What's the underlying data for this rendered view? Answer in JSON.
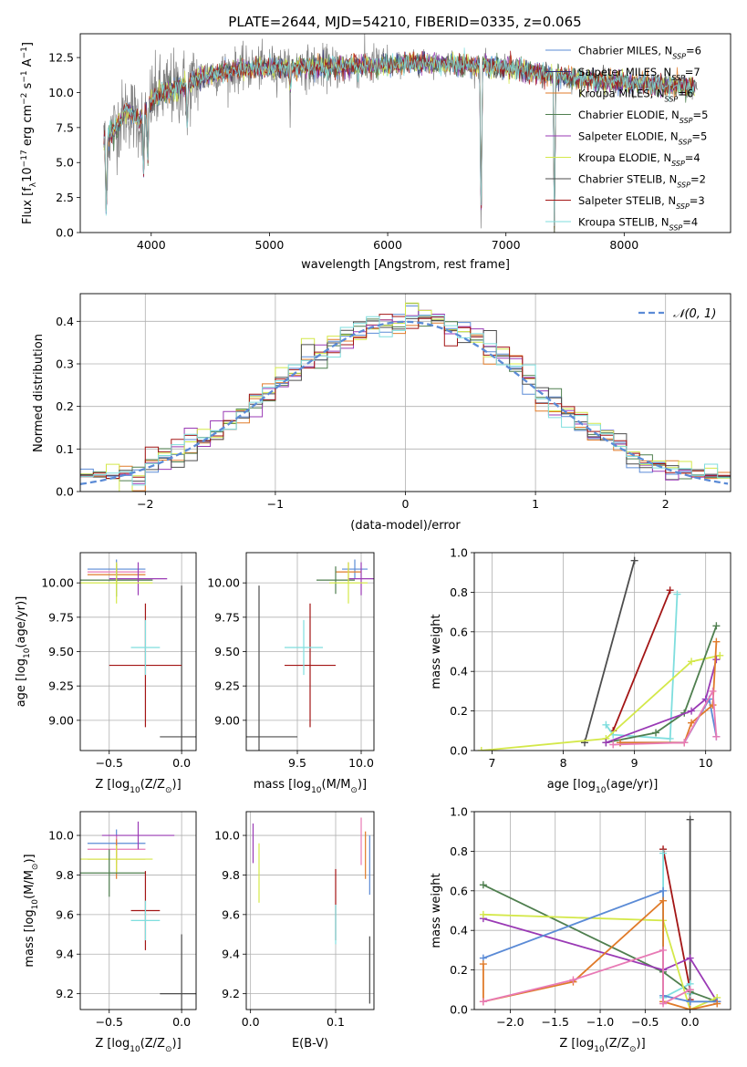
{
  "figure": {
    "title": "PLATE=2644, MJD=54210, FIBERID=0335, z=0.065"
  },
  "colors": {
    "Chabrier MILES": "#5b8bd6",
    "Salpeter MILES": "#2f2f6f",
    "Kroupa MILES": "#e07b2a",
    "Chabrier ELODIE": "#4f7f4f",
    "Salpeter ELODIE": "#9a3ab5",
    "Kroupa ELODIE": "#d4e84a",
    "Chabrier STELIB": "#4d4d4d",
    "Salpeter STELIB": "#a31515",
    "Kroupa STELIB": "#7fdede",
    "pink": "#e87ab5",
    "data": "#808080",
    "gaussian": "#5b8bd6"
  },
  "chart_data": [
    {
      "id": "spectrum",
      "type": "line",
      "title": "PLATE=2644, MJD=54210, FIBERID=0335, z=0.065",
      "xlabel": "wavelength [Angstrom, rest frame]",
      "ylabel_parts": {
        "a": "Flux [f",
        "sub": "λ",
        "b": "10",
        "sup1": "−17",
        "c": " erg cm",
        "sup2": "−2",
        "d": " s",
        "sup3": "−1",
        "e": " A",
        "sup4": "−1",
        "f": "]"
      },
      "xlim": [
        3400,
        8900
      ],
      "ylim": [
        0,
        14.2
      ],
      "xticks": [
        4000,
        5000,
        6000,
        7000,
        8000
      ],
      "yticks": [
        0.0,
        2.5,
        5.0,
        7.5,
        10.0,
        12.5
      ],
      "grid": false,
      "legend_position": "top-right",
      "legend": [
        {
          "label": "Chabrier MILES, N",
          "sub": "SSP",
          "tail": "=6",
          "color": "#5b8bd6"
        },
        {
          "label": "Salpeter MILES, N",
          "sub": "SSP",
          "tail": "=7",
          "color": "#2f2f6f"
        },
        {
          "label": "Kroupa MILES, N",
          "sub": "SSP",
          "tail": "=6",
          "color": "#e07b2a"
        },
        {
          "label": "Chabrier ELODIE, N",
          "sub": "SSP",
          "tail": "=5",
          "color": "#4f7f4f"
        },
        {
          "label": "Salpeter ELODIE, N",
          "sub": "SSP",
          "tail": "=5",
          "color": "#9a3ab5"
        },
        {
          "label": "Kroupa ELODIE, N",
          "sub": "SSP",
          "tail": "=4",
          "color": "#d4e84a"
        },
        {
          "label": "Chabrier STELIB, N",
          "sub": "SSP",
          "tail": "=2",
          "color": "#4d4d4d"
        },
        {
          "label": "Salpeter STELIB, N",
          "sub": "SSP",
          "tail": "=3",
          "color": "#a31515"
        },
        {
          "label": "Kroupa STELIB, N",
          "sub": "SSP",
          "tail": "=4",
          "color": "#7fdede"
        }
      ],
      "continuum": {
        "x": [
          3600,
          3700,
          3800,
          3900,
          4000,
          4100,
          4200,
          4300,
          4400,
          4500,
          4700,
          5000,
          5300,
          5600,
          6000,
          6300,
          6600,
          7000,
          7400,
          7800,
          8200,
          8600
        ],
        "y": [
          6.5,
          7.5,
          8.8,
          8.0,
          9.5,
          10.0,
          10.3,
          10.5,
          11.0,
          11.3,
          11.6,
          11.8,
          11.8,
          11.8,
          12.0,
          12.1,
          12.0,
          11.8,
          11.2,
          10.8,
          10.6,
          10.4
        ]
      },
      "absorption_lines": [
        {
          "x": 3620,
          "depth": 0.9
        },
        {
          "x": 3935,
          "depth": 0.55
        },
        {
          "x": 3970,
          "depth": 0.5
        },
        {
          "x": 4305,
          "depth": 0.3
        },
        {
          "x": 5175,
          "depth": 0.15
        },
        {
          "x": 6790,
          "depth": 1.0
        },
        {
          "x": 7410,
          "depth": 1.0
        }
      ]
    },
    {
      "id": "residuals",
      "type": "histogram",
      "xlabel": "(data-model)/error",
      "ylabel": "Normed distribution",
      "xlim": [
        -2.5,
        2.5
      ],
      "ylim": [
        0,
        0.465
      ],
      "xticks": [
        -2,
        -1,
        0,
        1,
        2
      ],
      "yticks": [
        0.0,
        0.1,
        0.2,
        0.3,
        0.4
      ],
      "grid": true,
      "legend_position": "top-right",
      "gaussian_label": "𝒩(0, 1)",
      "bin_width": 0.1
    },
    {
      "id": "age-vs-Z",
      "type": "errorbar",
      "xlabel_parts": {
        "a": "Z [log",
        "sub": "10",
        "b": "(Z/Z",
        "sub2": "⊙",
        "c": ")]"
      },
      "ylabel_parts": {
        "a": "age  [log",
        "sub": "10",
        "b": "(age/yr)]"
      },
      "xlim": [
        -0.7,
        0.1
      ],
      "ylim": [
        8.78,
        10.22
      ],
      "xticks": [
        -0.5,
        0.0
      ],
      "yticks": [
        9.0,
        9.25,
        9.5,
        9.75,
        10.0
      ],
      "grid": true,
      "points": [
        {
          "x": -0.45,
          "xerr": 0.2,
          "y": 10.1,
          "yerr": 0.07,
          "color": "#5b8bd6"
        },
        {
          "x": -0.45,
          "xerr": 0.2,
          "y": 10.08,
          "yerr": 0.07,
          "color": "#e87ab5"
        },
        {
          "x": -0.45,
          "xerr": 0.2,
          "y": 10.06,
          "yerr": 0.07,
          "color": "#e07b2a"
        },
        {
          "x": -0.45,
          "xerr": 0.25,
          "y": 10.02,
          "yerr": 0.12,
          "color": "#4f7f4f"
        },
        {
          "x": -0.3,
          "xerr": 0.2,
          "y": 10.03,
          "yerr": 0.12,
          "color": "#9a3ab5"
        },
        {
          "x": -0.45,
          "xerr": 0.25,
          "y": 10.0,
          "yerr": 0.15,
          "color": "#d4e84a"
        },
        {
          "x": 0.0,
          "xerr": 0.15,
          "y": 8.88,
          "yerr": 1.1,
          "color": "#4d4d4d"
        },
        {
          "x": -0.25,
          "xerr": 0.25,
          "y": 9.4,
          "yerr": 0.45,
          "color": "#a31515"
        },
        {
          "x": -0.25,
          "xerr": 0.1,
          "y": 9.53,
          "yerr": 0.2,
          "color": "#7fdede"
        }
      ]
    },
    {
      "id": "age-vs-mass",
      "type": "errorbar",
      "xlabel_parts": {
        "a": "mass [log",
        "sub": "10",
        "b": "(M/M",
        "sub2": "⊙",
        "c": ")]"
      },
      "xlim": [
        9.1,
        10.1
      ],
      "ylim": [
        8.78,
        10.22
      ],
      "xticks": [
        9.5,
        10.0
      ],
      "yticks": [
        9.0,
        9.25,
        9.5,
        9.75,
        10.0
      ],
      "grid": true,
      "points": [
        {
          "x": 9.95,
          "xerr": 0.1,
          "y": 10.1,
          "yerr": 0.07,
          "color": "#5b8bd6"
        },
        {
          "x": 9.9,
          "xerr": 0.1,
          "y": 10.08,
          "yerr": 0.07,
          "color": "#e07b2a"
        },
        {
          "x": 9.8,
          "xerr": 0.15,
          "y": 10.02,
          "yerr": 0.1,
          "color": "#4f7f4f"
        },
        {
          "x": 10.0,
          "xerr": 0.1,
          "y": 10.03,
          "yerr": 0.12,
          "color": "#9a3ab5"
        },
        {
          "x": 9.9,
          "xerr": 0.15,
          "y": 10.0,
          "yerr": 0.15,
          "color": "#d4e84a"
        },
        {
          "x": 9.2,
          "xerr": 0.3,
          "y": 8.88,
          "yerr": 1.1,
          "color": "#4d4d4d"
        },
        {
          "x": 9.6,
          "xerr": 0.2,
          "y": 9.4,
          "yerr": 0.45,
          "color": "#a31515"
        },
        {
          "x": 9.55,
          "xerr": 0.15,
          "y": 9.53,
          "yerr": 0.2,
          "color": "#7fdede"
        }
      ]
    },
    {
      "id": "weight-vs-age",
      "type": "line",
      "xlabel_parts": {
        "a": "age  [log",
        "sub": "10",
        "b": "(age/yr)]"
      },
      "ylabel": "mass weight",
      "xlim": [
        6.75,
        10.35
      ],
      "ylim": [
        0,
        1.0
      ],
      "xticks": [
        7,
        8,
        9,
        10
      ],
      "yticks": [
        0.0,
        0.2,
        0.4,
        0.6,
        0.8,
        1.0
      ],
      "grid": true,
      "series": [
        {
          "color": "#4d4d4d",
          "x": [
            8.3,
            9.0
          ],
          "y": [
            0.04,
            0.96
          ]
        },
        {
          "color": "#a31515",
          "x": [
            8.7,
            9.5
          ],
          "y": [
            0.1,
            0.81
          ]
        },
        {
          "color": "#7fdede",
          "x": [
            8.6,
            8.7,
            9.5,
            9.6
          ],
          "y": [
            0.13,
            0.08,
            0.06,
            0.79
          ]
        },
        {
          "color": "#d4e84a",
          "x": [
            6.85,
            8.6,
            9.8,
            10.2
          ],
          "y": [
            0.0,
            0.06,
            0.45,
            0.48
          ]
        },
        {
          "color": "#4f7f4f",
          "x": [
            8.6,
            9.3,
            9.7,
            10.15
          ],
          "y": [
            0.04,
            0.09,
            0.19,
            0.63
          ]
        },
        {
          "color": "#9a3ab5",
          "x": [
            8.6,
            9.8,
            10.0,
            10.15
          ],
          "y": [
            0.04,
            0.2,
            0.26,
            0.46
          ]
        },
        {
          "color": "#5b8bd6",
          "x": [
            8.8,
            9.7,
            10.05,
            10.15
          ],
          "y": [
            0.04,
            0.04,
            0.26,
            0.07
          ]
        },
        {
          "color": "#e07b2a",
          "x": [
            8.8,
            9.7,
            9.8,
            10.1,
            10.15
          ],
          "y": [
            0.04,
            0.04,
            0.14,
            0.23,
            0.55
          ]
        },
        {
          "color": "#e87ab5",
          "x": [
            8.7,
            9.7,
            10.1,
            10.15
          ],
          "y": [
            0.03,
            0.04,
            0.3,
            0.07
          ]
        }
      ]
    },
    {
      "id": "mass-vs-Z",
      "type": "errorbar",
      "xlabel_parts": {
        "a": "Z [log",
        "sub": "10",
        "b": "(Z/Z",
        "sub2": "⊙",
        "c": ")]"
      },
      "ylabel_parts": {
        "a": "mass [log",
        "sub": "10",
        "b": "(M/M",
        "sub2": "⊙",
        "c": ")]"
      },
      "xlim": [
        -0.7,
        0.1
      ],
      "ylim": [
        9.12,
        10.12
      ],
      "xticks": [
        -0.5,
        0.0
      ],
      "yticks": [
        9.2,
        9.4,
        9.6,
        9.8,
        10.0
      ],
      "grid": true,
      "points": [
        {
          "x": -0.45,
          "xerr": 0.2,
          "y": 9.96,
          "yerr": 0.07,
          "color": "#5b8bd6"
        },
        {
          "x": -0.45,
          "xerr": 0.2,
          "y": 9.93,
          "yerr": 0.07,
          "color": "#e87ab5"
        },
        {
          "x": -0.3,
          "xerr": 0.25,
          "y": 10.0,
          "yerr": 0.07,
          "color": "#9a3ab5"
        },
        {
          "x": -0.45,
          "xerr": 0.2,
          "y": 9.88,
          "yerr": 0.1,
          "color": "#e07b2a"
        },
        {
          "x": -0.45,
          "xerr": 0.25,
          "y": 9.88,
          "yerr": 0.07,
          "color": "#d4e84a"
        },
        {
          "x": -0.5,
          "xerr": 0.25,
          "y": 9.81,
          "yerr": 0.12,
          "color": "#4f7f4f"
        },
        {
          "x": -0.25,
          "xerr": 0.1,
          "y": 9.62,
          "yerr": 0.2,
          "color": "#a31515"
        },
        {
          "x": -0.25,
          "xerr": 0.1,
          "y": 9.57,
          "yerr": 0.1,
          "color": "#7fdede"
        },
        {
          "x": 0.0,
          "xerr": 0.15,
          "y": 9.2,
          "yerr": 0.3,
          "color": "#4d4d4d"
        }
      ]
    },
    {
      "id": "mass-vs-ebv",
      "type": "errorbar",
      "xlabel": "E(B-V)",
      "xlim": [
        -0.005,
        0.145
      ],
      "ylim": [
        9.12,
        10.12
      ],
      "xticks": [
        0.0,
        0.1
      ],
      "yticks": [
        9.2,
        9.4,
        9.6,
        9.8,
        10.0
      ],
      "grid": true,
      "points": [
        {
          "x": 0.003,
          "y": 9.96,
          "yerr": 0.1,
          "color": "#9a3ab5"
        },
        {
          "x": 0.01,
          "y": 9.81,
          "yerr": 0.15,
          "color": "#d4e84a"
        },
        {
          "x": 0.1,
          "y": 9.65,
          "yerr": 0.18,
          "color": "#a31515"
        },
        {
          "x": 0.1,
          "y": 9.55,
          "yerr": 0.1,
          "color": "#7fdede"
        },
        {
          "x": 0.13,
          "y": 9.97,
          "yerr": 0.12,
          "color": "#e87ab5"
        },
        {
          "x": 0.135,
          "y": 9.9,
          "yerr": 0.12,
          "color": "#e07b2a"
        },
        {
          "x": 0.14,
          "y": 9.85,
          "yerr": 0.15,
          "color": "#5b8bd6"
        },
        {
          "x": 0.14,
          "y": 9.32,
          "yerr": 0.17,
          "color": "#4d4d4d"
        }
      ]
    },
    {
      "id": "weight-vs-Z",
      "type": "line",
      "xlabel_parts": {
        "a": "Z [log",
        "sub": "10",
        "b": "(Z/Z",
        "sub2": "⊙",
        "c": ")]"
      },
      "ylabel": "mass weight",
      "xlim": [
        -2.4,
        0.45
      ],
      "ylim": [
        0,
        1.0
      ],
      "xticks": [
        -2.0,
        -1.5,
        -1.0,
        -0.5,
        0.0
      ],
      "yticks": [
        0.0,
        0.2,
        0.4,
        0.6,
        0.8,
        1.0
      ],
      "grid": true,
      "series": [
        {
          "color": "#4d4d4d",
          "x": [
            0.0,
            0.0,
            0.0
          ],
          "y": [
            0.04,
            0.96,
            0.04
          ]
        },
        {
          "color": "#a31515",
          "x": [
            -0.3,
            0.0,
            0.0
          ],
          "y": [
            0.81,
            0.1,
            0.05
          ]
        },
        {
          "color": "#7fdede",
          "x": [
            -0.3,
            -0.3,
            0.0,
            0.0
          ],
          "y": [
            0.79,
            0.06,
            0.13,
            0.08
          ]
        },
        {
          "color": "#4f7f4f",
          "x": [
            -2.3,
            -0.3,
            0.0,
            0.3
          ],
          "y": [
            0.63,
            0.19,
            0.09,
            0.04
          ]
        },
        {
          "color": "#9a3ab5",
          "x": [
            -2.3,
            -0.3,
            0.0,
            0.3
          ],
          "y": [
            0.46,
            0.2,
            0.26,
            0.04
          ]
        },
        {
          "color": "#d4e84a",
          "x": [
            -2.3,
            -0.3,
            0.0,
            0.3
          ],
          "y": [
            0.48,
            0.45,
            0.0,
            0.06
          ]
        },
        {
          "color": "#5b8bd6",
          "x": [
            -2.3,
            -0.3,
            -0.3,
            0.0,
            0.3
          ],
          "y": [
            0.26,
            0.6,
            0.07,
            0.04,
            0.04
          ]
        },
        {
          "color": "#e07b2a",
          "x": [
            -2.3,
            -2.3,
            -1.3,
            -0.3,
            -0.3,
            0.0,
            0.3
          ],
          "y": [
            0.23,
            0.04,
            0.14,
            0.55,
            0.04,
            0.0,
            0.03
          ]
        },
        {
          "color": "#e87ab5",
          "x": [
            -2.3,
            -1.3,
            -0.3,
            -0.3,
            0.0
          ],
          "y": [
            0.04,
            0.15,
            0.3,
            0.03,
            0.1
          ]
        }
      ]
    }
  ]
}
